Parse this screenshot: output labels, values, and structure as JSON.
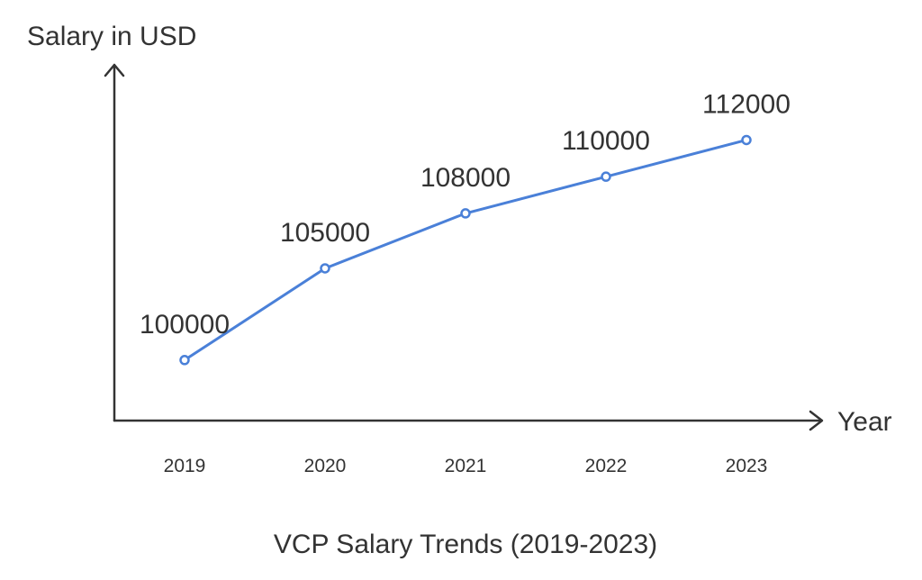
{
  "chart_data": {
    "type": "line",
    "title": "VCP Salary Trends (2019-2023)",
    "xlabel": "Year",
    "ylabel": "Salary in USD",
    "categories": [
      "2019",
      "2020",
      "2021",
      "2022",
      "2023"
    ],
    "series": [
      {
        "values": [
          100000,
          105000,
          108000,
          110000,
          112000
        ]
      }
    ],
    "ylim": [
      96700,
      116000
    ],
    "grid": false,
    "legend": "none",
    "line_color": "#4a80d8",
    "axis_color": "#333333",
    "text_color": "#333333"
  }
}
